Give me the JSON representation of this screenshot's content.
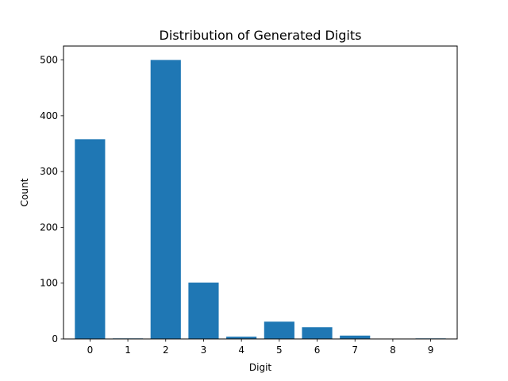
{
  "chart_data": {
    "type": "bar",
    "title": "Distribution of Generated Digits",
    "xlabel": "Digit",
    "ylabel": "Count",
    "categories": [
      "0",
      "1",
      "2",
      "3",
      "4",
      "5",
      "6",
      "7",
      "8",
      "9"
    ],
    "values": [
      358,
      1,
      500,
      101,
      4,
      31,
      21,
      6,
      0,
      1
    ],
    "ylim": [
      0,
      525
    ],
    "yticks": [
      0,
      100,
      200,
      300,
      400,
      500
    ],
    "bar_color": "#1f77b4",
    "grid": false
  }
}
